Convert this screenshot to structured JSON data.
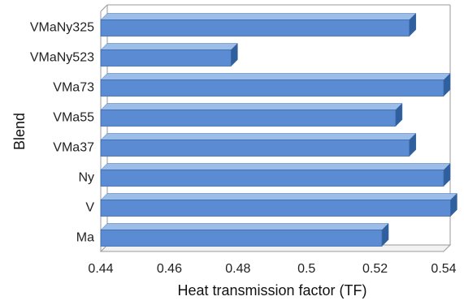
{
  "chart_data": {
    "type": "bar",
    "orientation": "horizontal",
    "style": "3d",
    "categories": [
      "VMaNy325",
      "VMaNy523",
      "VMa73",
      "VMa55",
      "VMa37",
      "Ny",
      "V",
      "Ma"
    ],
    "values": [
      0.53,
      0.478,
      0.54,
      0.526,
      0.53,
      0.54,
      0.542,
      0.522
    ],
    "xlabel": "Heat transmission factor (TF)",
    "ylabel": "Blend",
    "xlim": [
      0.44,
      0.54
    ],
    "xticks": [
      "0.44",
      "0.46",
      "0.48",
      "0.5",
      "0.52",
      "0.54"
    ],
    "grid": false,
    "legend": "none",
    "colors": {
      "bar_front": "#5b8bd2",
      "bar_top": "#9dbde9",
      "bar_side": "#2f5f9c",
      "bar_edge": "#3c6aa8",
      "frame": "#9a9a9a"
    }
  }
}
